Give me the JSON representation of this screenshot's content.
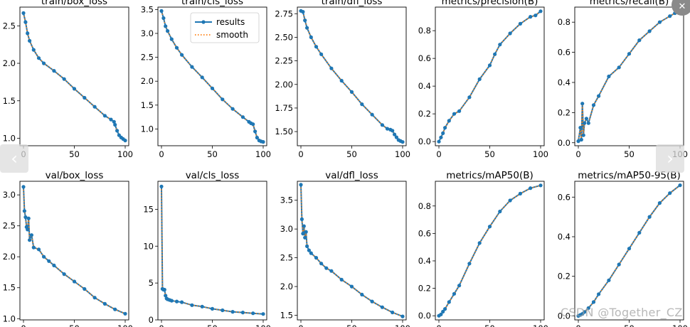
{
  "ui": {
    "prev_glyph": "‹",
    "next_glyph": "›",
    "close_glyph": "✕",
    "watermark": "CSDN @Together_CZ"
  },
  "colors": {
    "series": "#1f77b4",
    "smooth": "#ff7f0e",
    "axis": "#000000"
  },
  "chart_data": [
    {
      "type": "line",
      "title": "train/box_loss",
      "x": [
        0,
        2,
        4,
        6,
        10,
        15,
        20,
        30,
        40,
        50,
        60,
        70,
        80,
        86,
        89,
        90,
        92,
        94,
        96,
        98,
        100
      ],
      "series": [
        {
          "name": "results",
          "values": [
            2.67,
            2.55,
            2.4,
            2.3,
            2.18,
            2.07,
            2.0,
            1.9,
            1.79,
            1.66,
            1.54,
            1.42,
            1.3,
            1.25,
            1.22,
            1.18,
            1.1,
            1.04,
            1.01,
            0.99,
            0.97
          ]
        }
      ],
      "ylim": [
        0.9,
        2.75
      ],
      "yticks": [
        1.0,
        1.5,
        2.0,
        2.5
      ],
      "xticks": [
        0,
        50,
        100
      ]
    },
    {
      "type": "line",
      "title": "train/cls_loss",
      "x": [
        0,
        2,
        4,
        6,
        10,
        15,
        20,
        30,
        40,
        50,
        60,
        70,
        80,
        86,
        88,
        90,
        92,
        94,
        96,
        98,
        100
      ],
      "series": [
        {
          "name": "results",
          "values": [
            3.47,
            3.32,
            3.15,
            3.05,
            2.88,
            2.7,
            2.55,
            2.3,
            2.08,
            1.85,
            1.62,
            1.42,
            1.25,
            1.15,
            1.12,
            1.1,
            0.95,
            0.82,
            0.76,
            0.74,
            0.73
          ]
        }
      ],
      "ylim": [
        0.65,
        3.55
      ],
      "yticks": [
        1.0,
        1.5,
        2.0,
        2.5,
        3.0,
        3.5
      ],
      "xticks": [
        0,
        50,
        100
      ],
      "legend": [
        "results",
        "smooth"
      ]
    },
    {
      "type": "line",
      "title": "train/dfl_loss",
      "x": [
        0,
        2,
        4,
        6,
        10,
        15,
        20,
        30,
        40,
        50,
        60,
        70,
        80,
        85,
        88,
        90,
        92,
        94,
        96,
        98,
        100
      ],
      "series": [
        {
          "name": "results",
          "values": [
            2.78,
            2.77,
            2.68,
            2.6,
            2.5,
            2.4,
            2.32,
            2.17,
            2.04,
            1.92,
            1.79,
            1.68,
            1.57,
            1.53,
            1.52,
            1.51,
            1.47,
            1.44,
            1.41,
            1.4,
            1.39
          ]
        }
      ],
      "ylim": [
        1.35,
        2.82
      ],
      "yticks": [
        1.5,
        1.75,
        2.0,
        2.25,
        2.5,
        2.75
      ],
      "xticks": [
        0,
        50,
        100
      ]
    },
    {
      "type": "line",
      "title": "metrics/precision(B)",
      "x": [
        0,
        2,
        4,
        6,
        10,
        15,
        20,
        30,
        40,
        50,
        55,
        60,
        70,
        80,
        90,
        95,
        100
      ],
      "series": [
        {
          "name": "results",
          "values": [
            0.0,
            0.03,
            0.06,
            0.1,
            0.15,
            0.2,
            0.22,
            0.32,
            0.45,
            0.55,
            0.63,
            0.7,
            0.78,
            0.85,
            0.9,
            0.91,
            0.94
          ]
        }
      ],
      "ylim": [
        -0.03,
        0.97
      ],
      "yticks": [
        0.0,
        0.2,
        0.4,
        0.6,
        0.8
      ],
      "xticks": [
        0,
        50,
        100
      ]
    },
    {
      "type": "line",
      "title": "metrics/recall(B)",
      "x": [
        0,
        2,
        3,
        4,
        5,
        6,
        8,
        10,
        15,
        20,
        30,
        40,
        50,
        60,
        70,
        80,
        90,
        95,
        100
      ],
      "series": [
        {
          "name": "results",
          "values": [
            0.01,
            0.1,
            0.02,
            0.26,
            0.05,
            0.13,
            0.16,
            0.13,
            0.25,
            0.31,
            0.44,
            0.5,
            0.59,
            0.68,
            0.74,
            0.8,
            0.84,
            0.86,
            0.87
          ]
        }
      ],
      "ylim": [
        -0.02,
        0.9
      ],
      "yticks": [
        0.0,
        0.2,
        0.4,
        0.6,
        0.8
      ],
      "xticks": [
        0,
        50,
        100
      ]
    },
    {
      "type": "line",
      "title": "val/box_loss",
      "x": [
        0,
        1,
        2,
        3,
        4,
        5,
        6,
        8,
        10,
        15,
        20,
        25,
        30,
        40,
        50,
        60,
        70,
        80,
        90,
        100
      ],
      "series": [
        {
          "name": "results",
          "values": [
            3.13,
            2.74,
            2.64,
            2.48,
            2.44,
            2.62,
            2.27,
            2.35,
            2.15,
            2.12,
            2.0,
            1.93,
            1.86,
            1.72,
            1.6,
            1.48,
            1.34,
            1.24,
            1.15,
            1.08
          ]
        }
      ],
      "ylim": [
        0.98,
        3.22
      ],
      "yticks": [
        1.0,
        1.5,
        2.0,
        2.5,
        3.0
      ],
      "xticks": [
        0,
        50,
        100
      ]
    },
    {
      "type": "line",
      "title": "val/cls_loss",
      "x": [
        0,
        1,
        2,
        3,
        4,
        5,
        6,
        8,
        10,
        15,
        20,
        30,
        40,
        50,
        60,
        70,
        80,
        90,
        100
      ],
      "series": [
        {
          "name": "results",
          "values": [
            18.1,
            4.2,
            4.1,
            4.1,
            3.3,
            2.9,
            2.8,
            2.7,
            2.6,
            2.5,
            2.4,
            2.0,
            1.8,
            1.5,
            1.3,
            1.1,
            1.0,
            0.9,
            0.8
          ]
        }
      ],
      "ylim": [
        0,
        18.8
      ],
      "yticks": [
        0,
        5,
        10,
        15
      ],
      "xticks": [
        0,
        50,
        100
      ]
    },
    {
      "type": "line",
      "title": "val/dfl_loss",
      "x": [
        0,
        1,
        2,
        3,
        4,
        5,
        6,
        8,
        10,
        15,
        20,
        25,
        30,
        40,
        50,
        60,
        70,
        80,
        90,
        100
      ],
      "series": [
        {
          "name": "results",
          "values": [
            3.77,
            3.17,
            2.92,
            3.05,
            2.85,
            2.95,
            2.7,
            2.63,
            2.58,
            2.5,
            2.4,
            2.32,
            2.27,
            2.12,
            2.0,
            1.86,
            1.74,
            1.64,
            1.55,
            1.48
          ]
        }
      ],
      "ylim": [
        1.42,
        3.83
      ],
      "yticks": [
        1.5,
        2.0,
        2.5,
        3.0,
        3.5
      ],
      "xticks": [
        0,
        50,
        100
      ]
    },
    {
      "type": "line",
      "title": "metrics/mAP50(B)",
      "x": [
        0,
        2,
        4,
        6,
        10,
        15,
        20,
        30,
        40,
        50,
        60,
        70,
        80,
        90,
        100
      ],
      "series": [
        {
          "name": "results",
          "values": [
            0.0,
            0.01,
            0.03,
            0.05,
            0.1,
            0.16,
            0.22,
            0.38,
            0.53,
            0.65,
            0.76,
            0.84,
            0.89,
            0.93,
            0.95
          ]
        }
      ],
      "ylim": [
        -0.03,
        0.98
      ],
      "yticks": [
        0.0,
        0.2,
        0.4,
        0.6,
        0.8
      ],
      "xticks": [
        0,
        50,
        100
      ]
    },
    {
      "type": "line",
      "title": "metrics/mAP50-95(B)",
      "x": [
        0,
        2,
        4,
        6,
        10,
        15,
        20,
        30,
        40,
        50,
        60,
        70,
        80,
        90,
        100
      ],
      "series": [
        {
          "name": "results",
          "values": [
            0.0,
            0.005,
            0.01,
            0.02,
            0.04,
            0.07,
            0.11,
            0.18,
            0.26,
            0.34,
            0.42,
            0.5,
            0.57,
            0.62,
            0.66
          ]
        }
      ],
      "ylim": [
        -0.02,
        0.68
      ],
      "yticks": [
        0.0,
        0.2,
        0.4,
        0.6
      ],
      "xticks": [
        0,
        50,
        100
      ]
    }
  ]
}
